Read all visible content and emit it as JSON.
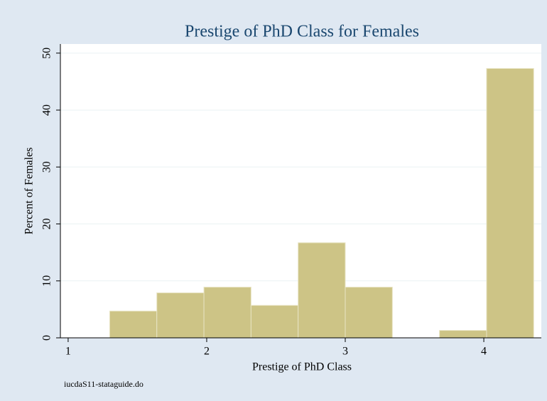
{
  "chart_data": {
    "type": "histogram",
    "title": "Prestige of PhD Class for Females",
    "xlabel": "Prestige of PhD Class",
    "ylabel": "Percent of Females",
    "note": "iucdaS11-stataguide.do",
    "bins": [
      1.3,
      1.64,
      1.98,
      2.32,
      2.66,
      3.0,
      3.34,
      3.68,
      4.02,
      4.36
    ],
    "values": [
      4.7,
      7.9,
      8.9,
      5.7,
      16.7,
      8.9,
      0,
      1.3,
      47.3
    ],
    "color": "#cdc486",
    "xlim": [
      0.944,
      4.415
    ],
    "xticks": [
      1,
      2,
      3,
      4
    ],
    "ylim": [
      0,
      51.6
    ],
    "yticks": [
      0,
      10,
      20,
      30,
      40,
      50
    ],
    "grid": true
  }
}
